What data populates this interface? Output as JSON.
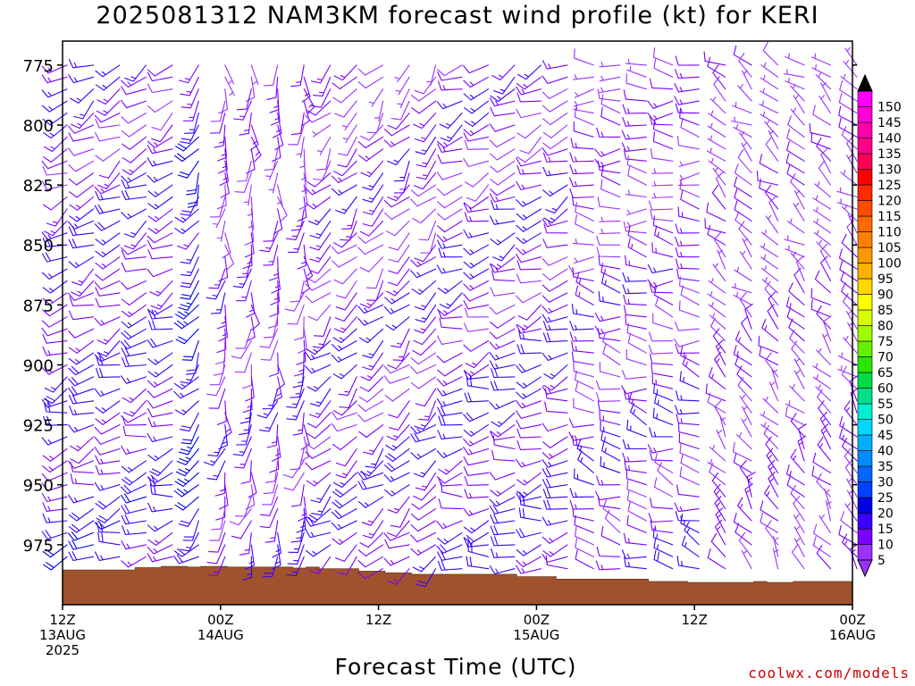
{
  "chart_data": {
    "type": "wind-barb profile",
    "title": "2025081312 NAM3KM forecast wind profile (kt) for KERI",
    "xlabel": "Forecast Time (UTC)",
    "ylabel": "",
    "y_axis": {
      "inverted": true,
      "ylim": [
        765,
        1000
      ],
      "ticks": [
        775,
        800,
        825,
        850,
        875,
        900,
        925,
        950,
        975
      ]
    },
    "x_axis": {
      "xlim": [
        0,
        60
      ],
      "ticks": [
        {
          "x": 0,
          "line1": "12Z",
          "line2": "13AUG",
          "line3": "2025"
        },
        {
          "x": 12,
          "line1": "00Z",
          "line2": "14AUG",
          "line3": ""
        },
        {
          "x": 24,
          "line1": "12Z",
          "line2": "",
          "line3": ""
        },
        {
          "x": 36,
          "line1": "00Z",
          "line2": "15AUG",
          "line3": ""
        },
        {
          "x": 48,
          "line1": "12Z",
          "line2": "",
          "line3": ""
        },
        {
          "x": 60,
          "line1": "00Z",
          "line2": "16AUG",
          "line3": ""
        }
      ]
    },
    "colorbar": {
      "units": "kt",
      "levels": [
        "5",
        "10",
        "15",
        "20",
        "25",
        "30",
        "35",
        "40",
        "45",
        "50",
        "55",
        "60",
        "65",
        "70",
        "75",
        "80",
        "85",
        "90",
        "95",
        "100",
        "105",
        "110",
        "115",
        "120",
        "125",
        "130",
        "135",
        "140",
        "145",
        "150"
      ],
      "colors": [
        "#9b30ff",
        "#7a00ff",
        "#3a00ff",
        "#0000e6",
        "#0040ff",
        "#0066ff",
        "#008cff",
        "#00b0ff",
        "#00d8ff",
        "#00f0d0",
        "#00e08c",
        "#00dc46",
        "#28e600",
        "#64f000",
        "#a0fa00",
        "#d8ff00",
        "#ffff00",
        "#ffd800",
        "#ffb000",
        "#ff9800",
        "#ff8000",
        "#ff6a00",
        "#ff4a00",
        "#ff2a00",
        "#ff0000",
        "#ff0055",
        "#ff0088",
        "#ff00b0",
        "#ff00d8",
        "#ff00ff"
      ]
    },
    "terrain": {
      "color": "#a0522d",
      "surface_pressure_mb": [
        {
          "t": 0,
          "p": 985.5
        },
        {
          "t": 5.5,
          "p": 984.5
        },
        {
          "t": 7.5,
          "p": 984.0
        },
        {
          "t": 9.5,
          "p": 984.3
        },
        {
          "t": 10.5,
          "p": 984.0
        },
        {
          "t": 12.5,
          "p": 984.3
        },
        {
          "t": 17.5,
          "p": 984.7
        },
        {
          "t": 18.5,
          "p": 984.3
        },
        {
          "t": 19.5,
          "p": 985.0
        },
        {
          "t": 22.5,
          "p": 986.0
        },
        {
          "t": 24.5,
          "p": 986.7
        },
        {
          "t": 26.5,
          "p": 987.3
        },
        {
          "t": 34.5,
          "p": 988.3
        },
        {
          "t": 37.5,
          "p": 989.3
        },
        {
          "t": 44.5,
          "p": 990.3
        },
        {
          "t": 47.5,
          "p": 990.7
        },
        {
          "t": 52.5,
          "p": 990.3
        },
        {
          "t": 53.5,
          "p": 990.7
        },
        {
          "t": 55.5,
          "p": 990.3
        },
        {
          "t": 60,
          "p": 990.3
        }
      ]
    },
    "levels_mb": [
      775,
      780,
      785,
      790,
      795,
      800,
      805,
      810,
      815,
      820,
      825,
      830,
      835,
      840,
      845,
      850,
      855,
      860,
      865,
      870,
      875,
      880,
      885,
      890,
      895,
      900,
      905,
      910,
      915,
      920,
      925,
      930,
      935,
      940,
      945,
      950,
      955,
      960,
      965,
      970,
      975,
      980,
      985,
      990
    ],
    "times_h": [
      0,
      2,
      4,
      6,
      8,
      10,
      12,
      14,
      16,
      18,
      20,
      22,
      24,
      26,
      28,
      30,
      32,
      34,
      36,
      38,
      40,
      42,
      44,
      46,
      48,
      50,
      52,
      54,
      56,
      58,
      60
    ],
    "wind_regimes": [
      {
        "t_from": 0,
        "t_to": 9,
        "direction_deg": 245,
        "speed_kt": 15
      },
      {
        "t_from": 9,
        "t_to": 12,
        "direction_deg": 215,
        "speed_kt": 20
      },
      {
        "t_from": 12,
        "t_to": 20,
        "direction_deg": 185,
        "speed_kt": 12
      },
      {
        "t_from": 20,
        "t_to": 30,
        "direction_deg": 225,
        "speed_kt": 13
      },
      {
        "t_from": 30,
        "t_to": 40,
        "direction_deg": 250,
        "speed_kt": 14
      },
      {
        "t_from": 40,
        "t_to": 50,
        "direction_deg": 280,
        "speed_kt": 12
      },
      {
        "t_from": 50,
        "t_to": 60,
        "direction_deg": 315,
        "speed_kt": 9
      }
    ]
  },
  "watermark": "coolwx.com/models"
}
